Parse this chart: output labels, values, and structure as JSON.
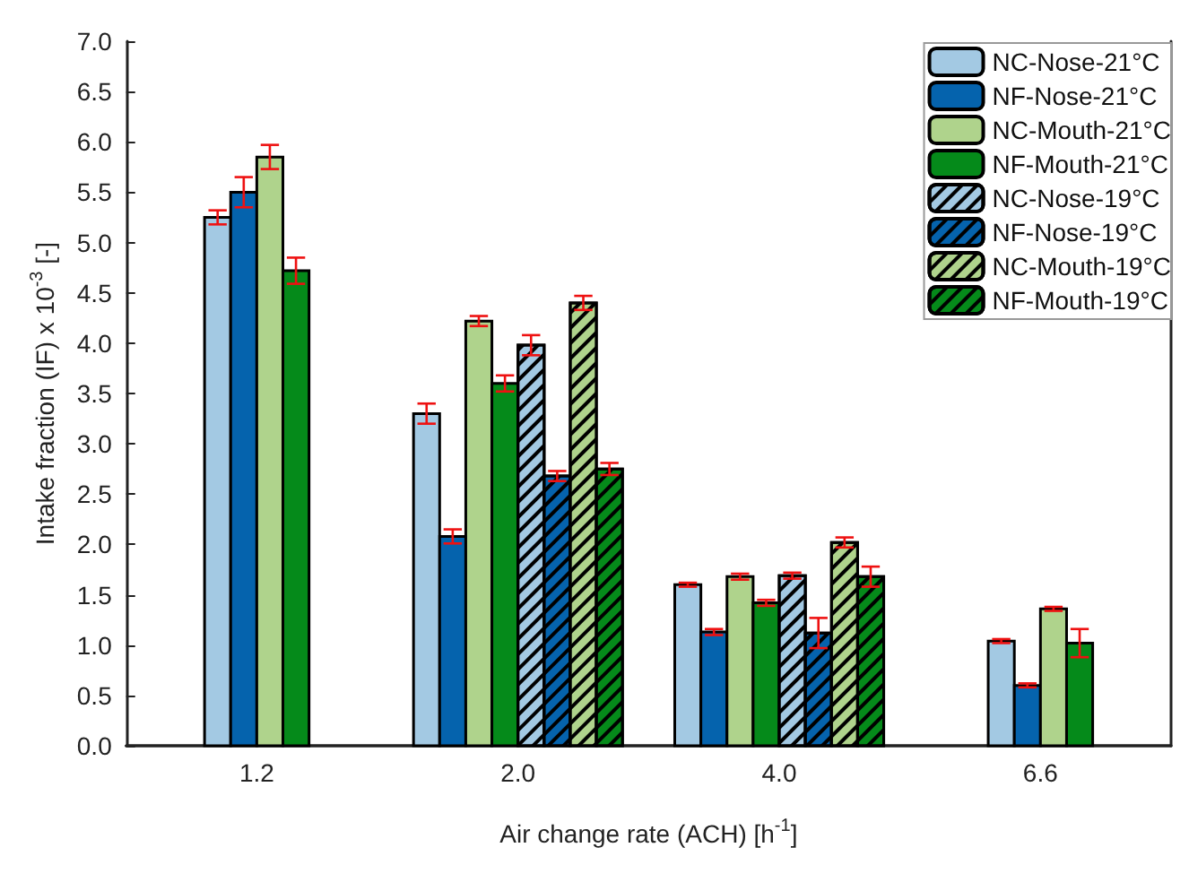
{
  "chart_data": {
    "type": "bar",
    "xlabel": "Air change rate (ACH) [h$^{-1}$]",
    "ylabel": "Intake fraction (IF) x 10$^{-3}$ [-]",
    "categories": [
      "1.2",
      "2.0",
      "4.0",
      "6.6"
    ],
    "ylim": [
      0,
      7
    ],
    "yticks": [
      {
        "value": 0,
        "label": "0.0"
      },
      {
        "value": 0.5,
        "label": "0.5"
      },
      {
        "value": 1,
        "label": "1.0"
      },
      {
        "value": 1.5,
        "label": "1.5"
      },
      {
        "value": 2,
        "label": "2.0"
      },
      {
        "value": 2.5,
        "label": "2.5"
      },
      {
        "value": 3,
        "label": "3.0"
      },
      {
        "value": 3.5,
        "label": "3.5"
      },
      {
        "value": 4,
        "label": "4.0"
      },
      {
        "value": 4.5,
        "label": "4.5"
      },
      {
        "value": 5,
        "label": "5.0"
      },
      {
        "value": 5.5,
        "label": "5.5"
      },
      {
        "value": 6,
        "label": "6.0"
      },
      {
        "value": 6.5,
        "label": "6.5"
      },
      {
        "value": 7,
        "label": "7.0"
      }
    ],
    "grid": false,
    "legend": "top right",
    "series": [
      {
        "name": "NC-Nose-21°C",
        "color": "#a3c9e3",
        "values": [
          5.25,
          3.3,
          1.6,
          1.04
        ],
        "errors": [
          0.07,
          0.1,
          0.02,
          0.02
        ]
      },
      {
        "name": "NF-Nose-21°C",
        "color": "#0563ad",
        "values": [
          5.5,
          2.08,
          1.13,
          0.6
        ],
        "errors": [
          0.15,
          0.07,
          0.03,
          0.02
        ]
      },
      {
        "name": "NC-Mouth-21°C",
        "color": "#afd38c",
        "values": [
          5.85,
          4.22,
          1.68,
          1.36
        ],
        "errors": [
          0.12,
          0.05,
          0.03,
          0.02
        ]
      },
      {
        "name": "NF-Mouth-21°C",
        "color": "#058a1a",
        "values": [
          4.72,
          3.6,
          1.42,
          1.02
        ],
        "errors": [
          0.13,
          0.08,
          0.03,
          0.14
        ]
      },
      {
        "name": "NC-Nose-19°C",
        "color": "#a3c9e3",
        "values": [
          null,
          3.98,
          1.69,
          null
        ],
        "errors": [
          null,
          0.1,
          0.03,
          null
        ]
      },
      {
        "name": "NF-Nose-19°C",
        "color": "#0563ad",
        "values": [
          null,
          2.68,
          1.12,
          null
        ],
        "errors": [
          null,
          0.05,
          0.15,
          null
        ]
      },
      {
        "name": "NC-Mouth-19°C",
        "color": "#afd38c",
        "values": [
          null,
          4.4,
          2.02,
          null
        ],
        "errors": [
          null,
          0.07,
          0.05,
          null
        ]
      },
      {
        "name": "NF-Mouth-19°C",
        "color": "#058a1a",
        "values": [
          null,
          2.75,
          1.68,
          null
        ],
        "errors": [
          null,
          0.06,
          0.1,
          null
        ]
      }
    ]
  }
}
